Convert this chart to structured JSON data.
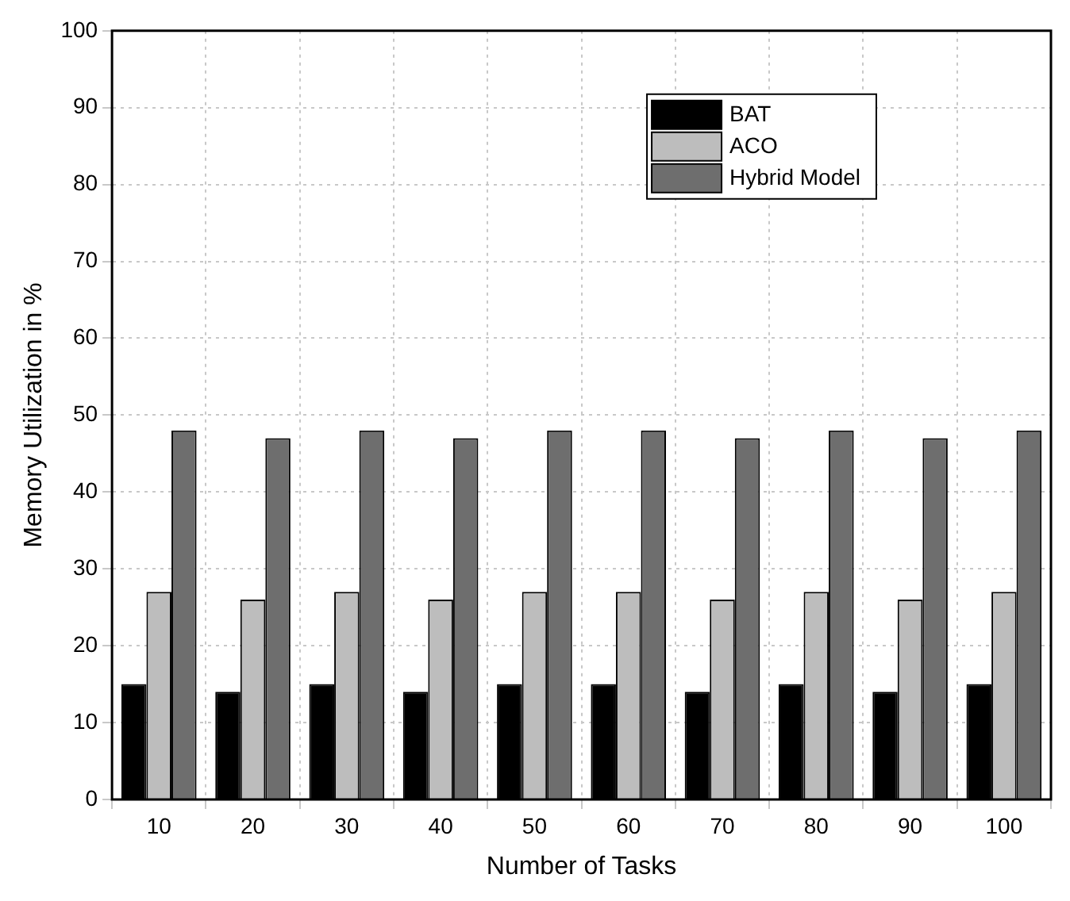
{
  "chart_data": {
    "type": "bar",
    "xlabel": "Number of Tasks",
    "ylabel": "Memory Utilization in %",
    "categories": [
      "10",
      "20",
      "30",
      "40",
      "50",
      "60",
      "70",
      "80",
      "90",
      "100"
    ],
    "series": [
      {
        "name": "BAT",
        "color": "#000000",
        "values": [
          15,
          14,
          15,
          14,
          15,
          15,
          14,
          15,
          14,
          15
        ]
      },
      {
        "name": "ACO",
        "color": "#bdbdbd",
        "values": [
          27,
          26,
          27,
          26,
          27,
          27,
          26,
          27,
          26,
          27
        ]
      },
      {
        "name": "Hybrid Model",
        "color": "#6e6e6e",
        "values": [
          48,
          47,
          48,
          47,
          48,
          48,
          47,
          48,
          47,
          48
        ]
      }
    ],
    "ylim": [
      0,
      100
    ],
    "yticks": [
      0,
      10,
      20,
      30,
      40,
      50,
      60,
      70,
      80,
      90,
      100
    ],
    "grid": true,
    "legend": "top right"
  }
}
